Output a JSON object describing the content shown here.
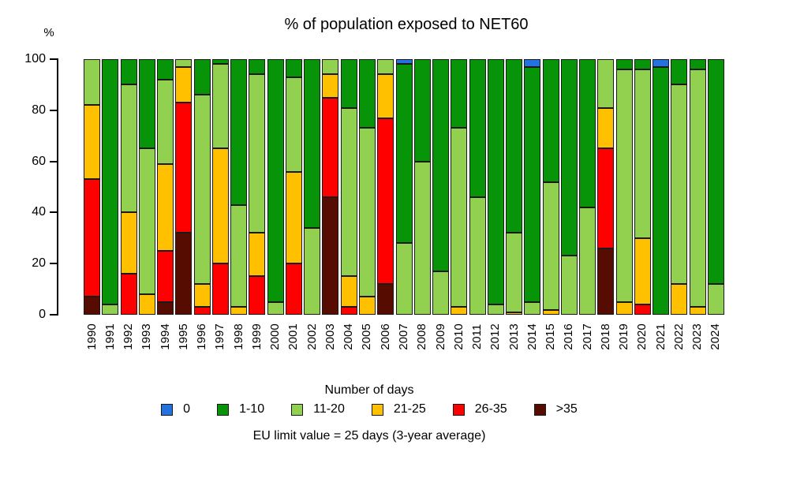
{
  "chart_data": {
    "type": "bar",
    "stacked": true,
    "title": "% of population exposed to NET60",
    "ylabel": "%",
    "legend_title": "Number of days",
    "caption": "EU limit value = 25 days (3-year average)",
    "ylim": [
      0,
      100
    ],
    "yticks": [
      0,
      20,
      40,
      60,
      80,
      100
    ],
    "grid": false,
    "legend_position": "bottom",
    "categories": [
      "1990",
      "1991",
      "1992",
      "1993",
      "1994",
      "1995",
      "1996",
      "1997",
      "1998",
      "1999",
      "2000",
      "2001",
      "2002",
      "2003",
      "2004",
      "2005",
      "2006",
      "2007",
      "2008",
      "2009",
      "2010",
      "2011",
      "2012",
      "2013",
      "2014",
      "2015",
      "2016",
      "2017",
      "2018",
      "2019",
      "2020",
      "2021",
      "2022",
      "2023",
      "2024"
    ],
    "series": [
      {
        "name": "0",
        "color": "#2372E0",
        "values": [
          0,
          0,
          0,
          0,
          0,
          0,
          0,
          0,
          0,
          0,
          0,
          0,
          0,
          0,
          0,
          0,
          0,
          2,
          0,
          0,
          0,
          0,
          0,
          0,
          3,
          0,
          0,
          0,
          0,
          0,
          0,
          3,
          0,
          0,
          0
        ]
      },
      {
        "name": "1-10",
        "color": "#089408",
        "values": [
          0,
          96,
          10,
          35,
          8,
          0,
          14,
          2,
          57,
          6,
          95,
          7,
          66,
          0,
          19,
          27,
          0,
          70,
          40,
          83,
          27,
          54,
          96,
          68,
          92,
          48,
          77,
          58,
          0,
          4,
          4,
          97,
          10,
          4,
          88
        ]
      },
      {
        "name": "11-20",
        "color": "#92D050",
        "values": [
          18,
          4,
          50,
          57,
          33,
          3,
          74,
          33,
          40,
          62,
          5,
          37,
          34,
          6,
          66,
          66,
          6,
          28,
          60,
          17,
          70,
          46,
          4,
          31,
          5,
          50,
          23,
          42,
          19,
          91,
          66,
          0,
          78,
          93,
          12
        ]
      },
      {
        "name": "21-25",
        "color": "#FFC000",
        "values": [
          29,
          0,
          24,
          8,
          34,
          14,
          9,
          45,
          3,
          17,
          0,
          36,
          0,
          9,
          12,
          7,
          17,
          0,
          0,
          0,
          3,
          0,
          0,
          1,
          0,
          2,
          0,
          0,
          16,
          5,
          26,
          0,
          12,
          3,
          0
        ]
      },
      {
        "name": "26-35",
        "color": "#FF0000",
        "values": [
          46,
          0,
          16,
          0,
          20,
          51,
          3,
          20,
          0,
          15,
          0,
          20,
          0,
          39,
          3,
          0,
          65,
          0,
          0,
          0,
          0,
          0,
          0,
          0,
          0,
          0,
          0,
          0,
          39,
          0,
          4,
          0,
          0,
          0,
          0
        ]
      },
      {
        "name": ">35",
        "color": "#570C02",
        "values": [
          7,
          0,
          0,
          0,
          5,
          32,
          0,
          0,
          0,
          0,
          0,
          0,
          0,
          46,
          0,
          0,
          12,
          0,
          0,
          0,
          0,
          0,
          0,
          0,
          0,
          0,
          0,
          0,
          26,
          0,
          0,
          0,
          0,
          0,
          0
        ]
      }
    ]
  }
}
